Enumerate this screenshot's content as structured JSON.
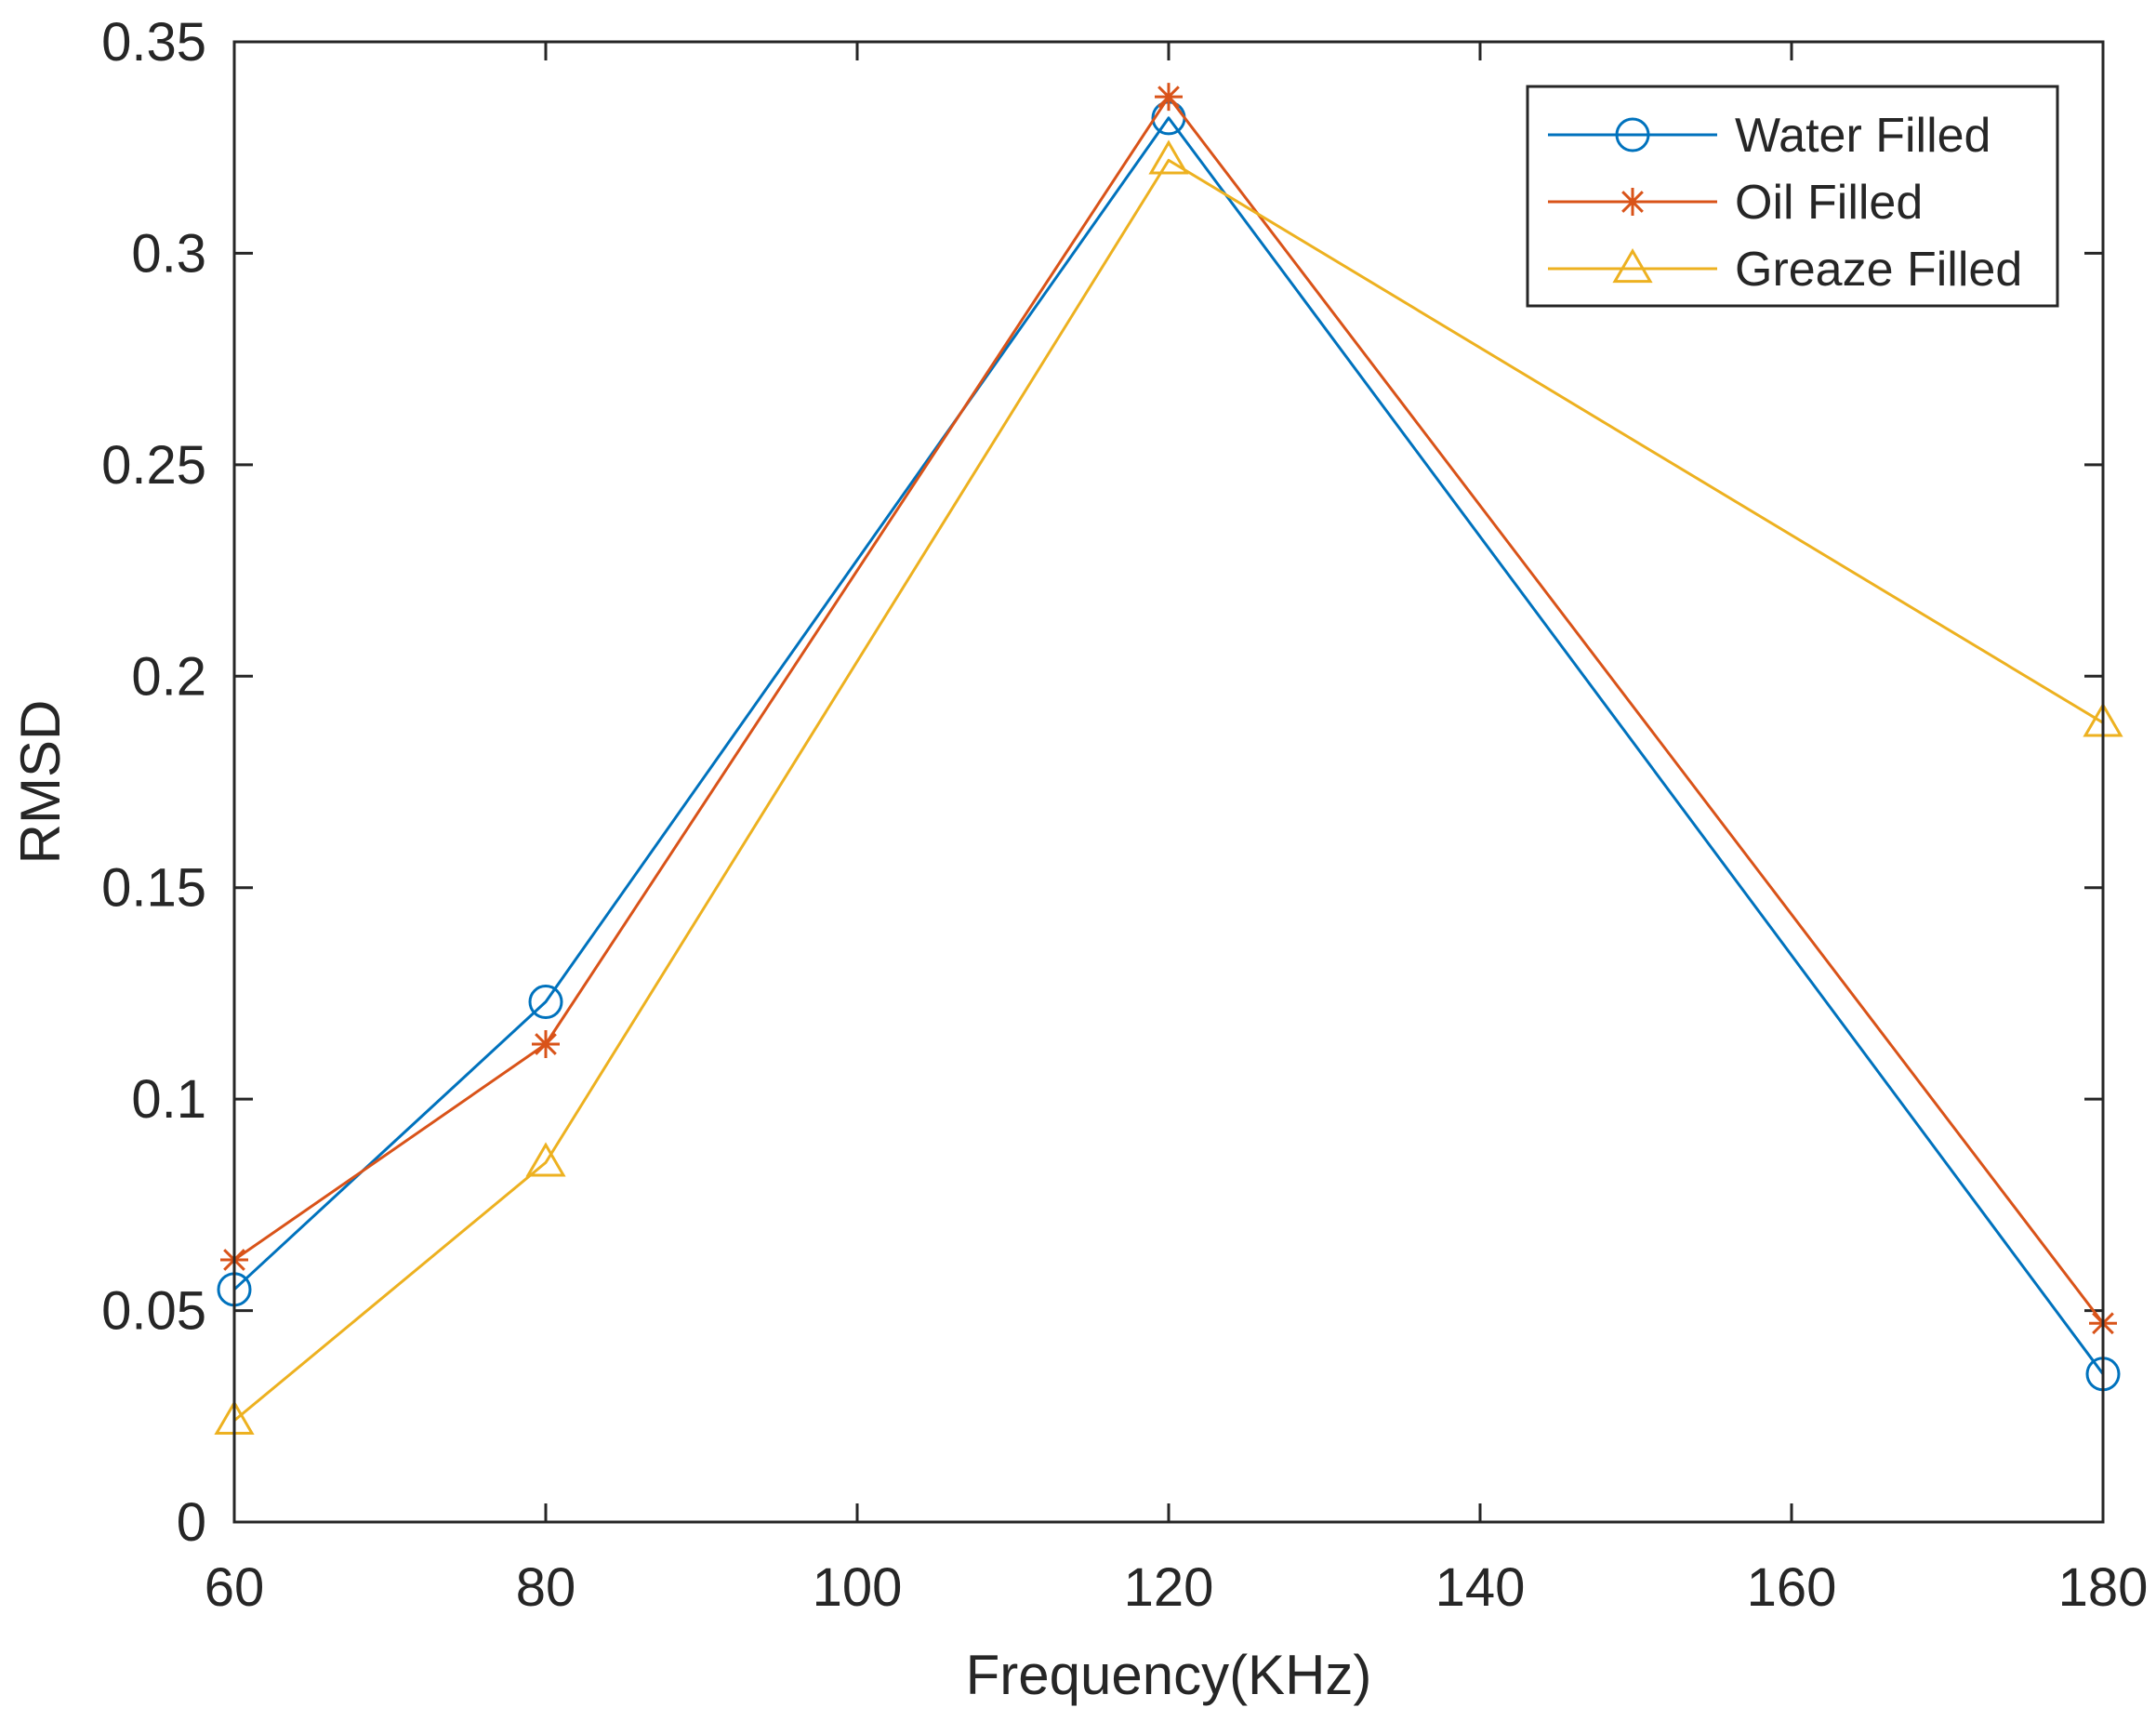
{
  "chart_data": {
    "type": "line",
    "title": "",
    "xlabel": "Frequency(KHz)",
    "ylabel": "RMSD",
    "xlim": [
      60,
      180
    ],
    "ylim": [
      0,
      0.35
    ],
    "xticks": [
      60,
      80,
      100,
      120,
      140,
      160,
      180
    ],
    "xtick_labels": [
      "60",
      "80",
      "100",
      "120",
      "140",
      "160",
      "180"
    ],
    "yticks": [
      0,
      0.05,
      0.1,
      0.15,
      0.2,
      0.25,
      0.3,
      0.35
    ],
    "ytick_labels": [
      "0",
      "0.05",
      "0.1",
      "0.15",
      "0.2",
      "0.25",
      "0.3",
      "0.35"
    ],
    "grid": false,
    "legend_position": "top-right",
    "series": [
      {
        "name": "Water Filled",
        "color": "#0072BD",
        "marker": "circle",
        "x": [
          60,
          80,
          120,
          180
        ],
        "y": [
          0.055,
          0.123,
          0.332,
          0.035
        ]
      },
      {
        "name": "Oil Filled",
        "color": "#D95319",
        "marker": "asterisk",
        "x": [
          60,
          80,
          120,
          180
        ],
        "y": [
          0.062,
          0.113,
          0.337,
          0.047
        ]
      },
      {
        "name": "Greaze Filled",
        "color": "#EDB120",
        "marker": "triangle",
        "x": [
          60,
          80,
          120,
          180
        ],
        "y": [
          0.024,
          0.085,
          0.322,
          0.189
        ]
      }
    ]
  }
}
